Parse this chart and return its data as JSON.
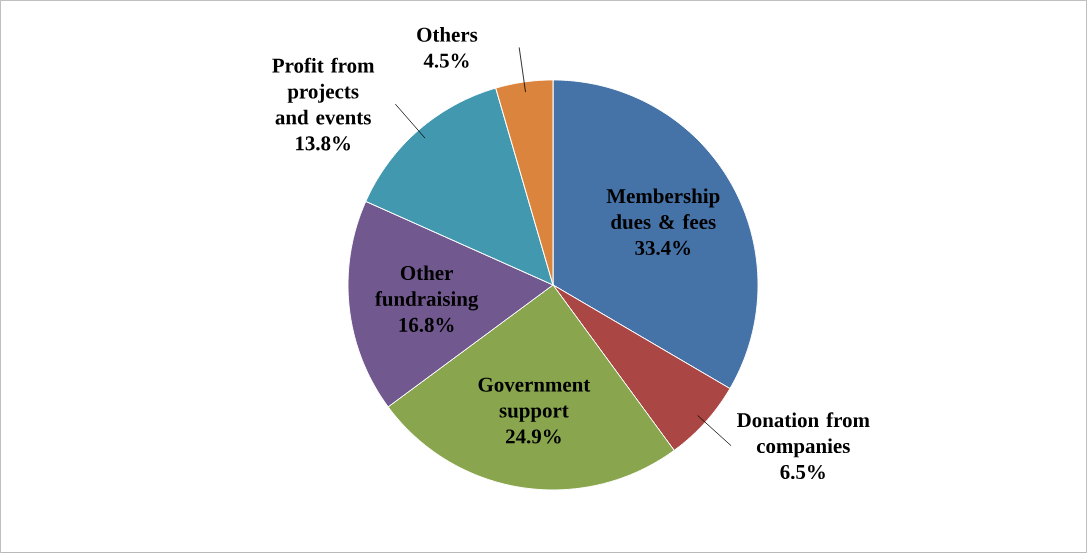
{
  "chart_data": {
    "type": "pie",
    "categories": [
      "Membership dues & fees",
      "Donation from companies",
      "Government support",
      "Other fundraising",
      "Profit from projects and events",
      "Others"
    ],
    "values": [
      33.4,
      6.5,
      24.9,
      16.8,
      13.8,
      4.5
    ],
    "colors": [
      "#4572a7",
      "#aa4643",
      "#89a54e",
      "#71588f",
      "#4198af",
      "#db843d"
    ],
    "value_labels": [
      "33.4%",
      "6.5%",
      "24.9%",
      "16.8%",
      "13.8%",
      "4.5%"
    ]
  }
}
